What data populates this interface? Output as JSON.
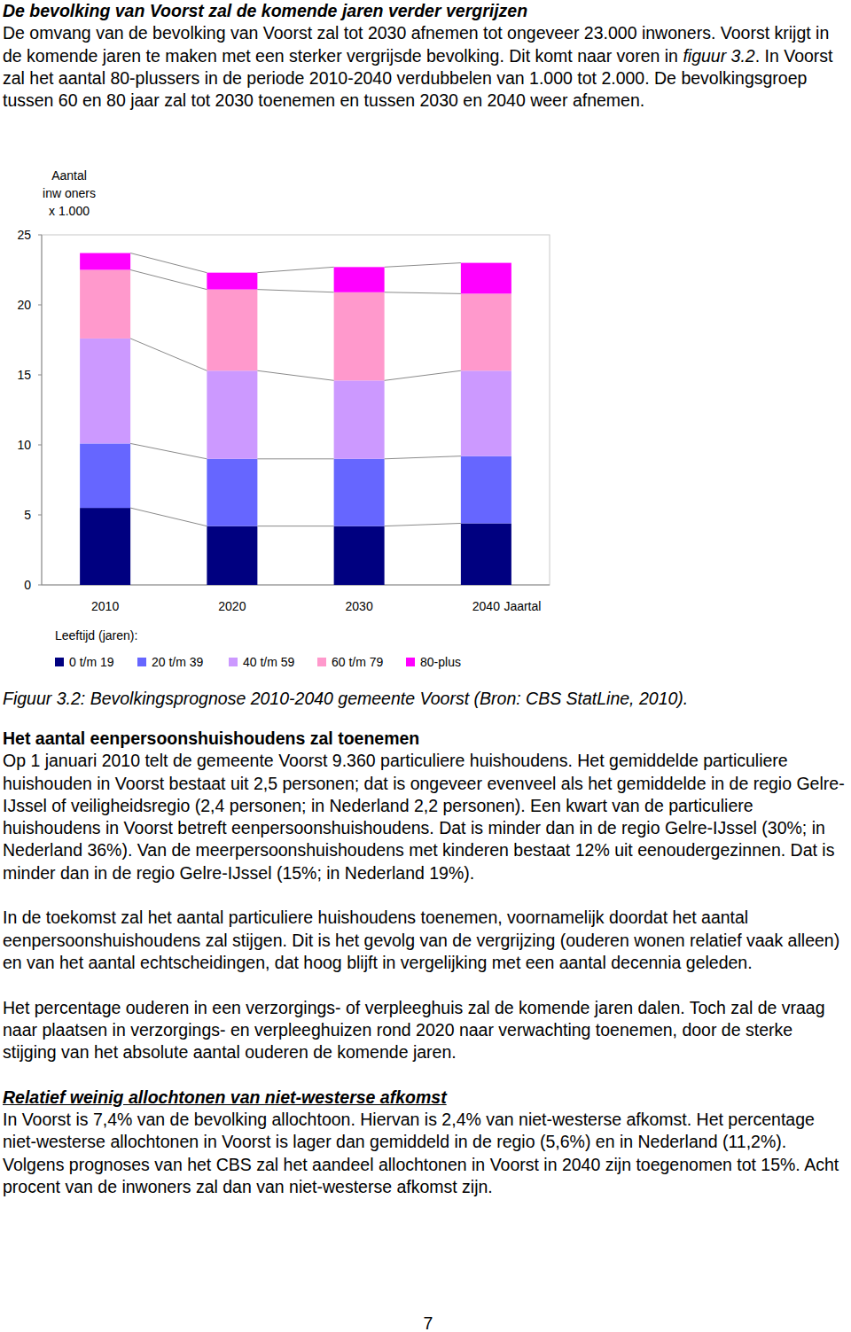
{
  "page": {
    "intro": {
      "heading": "De bevolking van Voorst zal de komende jaren verder vergrijzen",
      "text_before": "De omvang van de bevolking van Voorst zal tot 2030 afnemen tot ongeveer 23.000 inwoners. Voorst krijgt in de komende jaren te maken met een sterker vergrijsde bevolking. Dit komt naar voren in ",
      "figure_ref": "figuur 3.2",
      "text_after": ". In Voorst zal het aantal 80-plussers in de periode 2010-2040 verdubbelen van 1.000 tot 2.000. De bevolkingsgroep tussen 60 en 80 jaar zal tot 2030 toenemen en tussen 2030 en 2040 weer afnemen."
    },
    "figure_caption": "Figuur 3.2: Bevolkingsprognose 2010-2040 gemeente Voorst (Bron: CBS StatLine, 2010).",
    "sections": [
      {
        "heading": "Het aantal eenpersoonshuishoudens zal toenemen",
        "paragraphs": [
          "Op 1 januari 2010 telt de gemeente Voorst 9.360 particuliere huishoudens. Het gemiddelde particuliere huishouden in Voorst bestaat uit 2,5 personen; dat is ongeveer evenveel als het gemiddelde in de regio Gelre-IJssel of veiligheidsregio (2,4 personen; in Nederland 2,2 personen). Een kwart van de particuliere huishoudens in Voorst betreft eenpersoonshuishoudens. Dat is minder dan in de regio Gelre-IJssel (30%; in Nederland 36%). Van de meerpersoonshuishoudens met kinderen bestaat 12% uit eenoudergezinnen. Dat is minder dan in de regio Gelre-IJssel (15%; in Nederland 19%).",
          "In de toekomst zal het aantal particuliere huishoudens toenemen, voornamelijk doordat het aantal eenpersoonshuishoudens zal stijgen. Dit is het gevolg van de vergrijzing (ouderen wonen relatief vaak alleen) en van het aantal echtscheidingen, dat hoog blijft in vergelijking met een aantal decennia geleden.",
          "Het percentage ouderen in een verzorgings- of verpleeghuis zal de komende jaren dalen. Toch zal de vraag naar plaatsen in verzorgings- en verpleeghuizen rond 2020 naar verwachting toenemen, door de sterke stijging van het absolute aantal ouderen de komende jaren."
        ]
      },
      {
        "heading": "Relatief weinig allochtonen van niet-westerse afkomst",
        "paragraphs": [
          "In Voorst is 7,4% van de bevolking allochtoon. Hiervan is 2,4% van niet-westerse afkomst. Het percentage niet-westerse allochtonen in Voorst is lager dan gemiddeld in de regio (5,6%) en in Nederland (11,2%). Volgens prognoses van het CBS zal het aandeel allochtonen in Voorst in 2040 zijn toegenomen tot 15%. Acht procent van de inwoners zal dan van niet-westerse afkomst zijn."
        ]
      }
    ],
    "page_number": "7"
  },
  "chart_data": {
    "type": "bar",
    "stacked": true,
    "y_label": [
      "Aantal",
      "inw oners",
      "x 1.000"
    ],
    "x_label": "Jaartal",
    "legend_title": "Leeftijd (jaren):",
    "legend": "bottom",
    "categories": [
      "2010",
      "2020",
      "2030",
      "2040"
    ],
    "series": [
      {
        "name": "0 t/m 19",
        "color": "#000080",
        "values": [
          5.5,
          4.2,
          4.2,
          4.4
        ]
      },
      {
        "name": "20 t/m 39",
        "color": "#6666ff",
        "values": [
          4.6,
          4.8,
          4.8,
          4.8
        ]
      },
      {
        "name": "40 t/m 59",
        "color": "#cc99ff",
        "values": [
          7.5,
          6.3,
          5.6,
          6.1
        ]
      },
      {
        "name": "60 t/m 79",
        "color": "#ff99cc",
        "values": [
          4.9,
          5.8,
          6.3,
          5.5
        ]
      },
      {
        "name": "80-plus",
        "color": "#ff00ff",
        "values": [
          1.2,
          1.2,
          1.8,
          2.2
        ]
      }
    ],
    "ylim": [
      0,
      25
    ],
    "yticks": [
      0,
      5,
      10,
      15,
      20,
      25
    ]
  }
}
